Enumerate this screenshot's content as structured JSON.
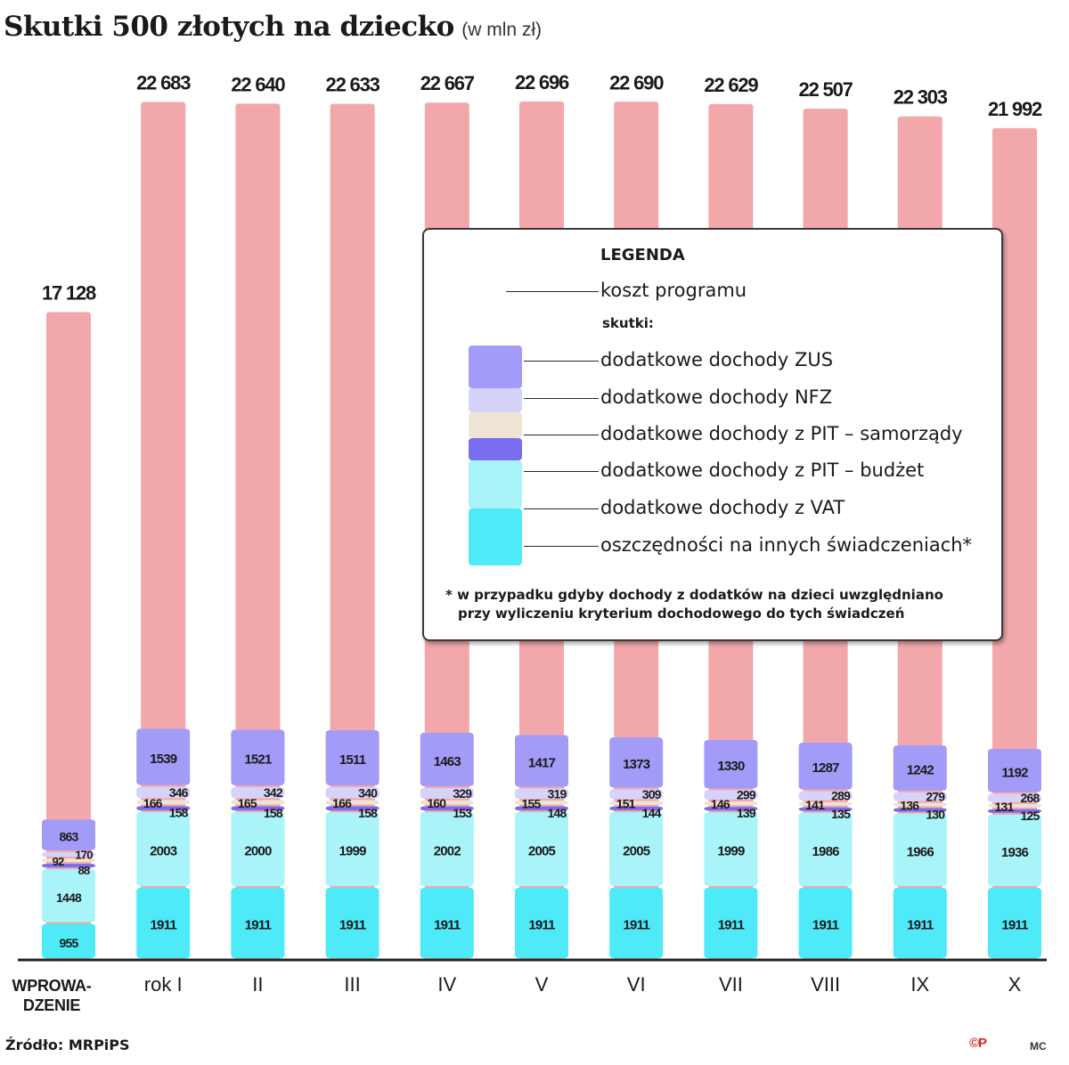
{
  "title": "Skutki 500 złotych na dziecko",
  "unit": "(w mln zł)",
  "source": "Źródło: MRPiPS",
  "logo": "©P",
  "author": "MC",
  "colors": {
    "koszt": "#f2a7aa",
    "zus": "#a29cf8",
    "nfz": "#d6d3fa",
    "pit_sam": "#efe3d3",
    "pit_bud": "#7b6df0",
    "vat": "#a9f4f9",
    "osz": "#4eeaf8"
  },
  "legend": {
    "heading": "LEGENDA",
    "cost_label": "koszt programu",
    "subheading": "skutki:",
    "items": [
      "dodatkowe dochody ZUS",
      "dodatkowe dochody NFZ",
      "dodatkowe dochody z PIT – samorządy",
      "dodatkowe dochody z PIT – budżet",
      "dodatkowe dochody z VAT",
      "oszczędności na innych świadczeniach*"
    ],
    "note_line1": "* w przypadku gdyby dochody z dodatków na dzieci uwzględniano",
    "note_line2": "przy wyliczeniu kryterium dochodowego do tych świadczeń"
  },
  "chart_data": {
    "type": "bar",
    "categories": [
      "WPROWA-\nDZENIE",
      "rok I",
      "II",
      "III",
      "IV",
      "V",
      "VI",
      "VII",
      "VIII",
      "IX",
      "X"
    ],
    "cost_labels": [
      "17 128",
      "22 683",
      "22 640",
      "22 633",
      "22 667",
      "22 696",
      "22 690",
      "22 629",
      "22 507",
      "22 303",
      "21 992"
    ],
    "series": [
      {
        "name": "koszt programu",
        "key": "koszt",
        "values": [
          17128,
          22683,
          22640,
          22633,
          22667,
          22696,
          22690,
          22629,
          22507,
          22303,
          21992
        ]
      },
      {
        "name": "oszczędności na innych świadczeniach*",
        "key": "osz",
        "values": [
          955,
          1911,
          1911,
          1911,
          1911,
          1911,
          1911,
          1911,
          1911,
          1911,
          1911
        ]
      },
      {
        "name": "dodatkowe dochody z VAT",
        "key": "vat",
        "values": [
          1448,
          2003,
          2000,
          1999,
          2002,
          2005,
          2005,
          1999,
          1986,
          1966,
          1936
        ]
      },
      {
        "name": "dodatkowe dochody z PIT – budżet",
        "key": "pit_bud",
        "values": [
          88,
          158,
          158,
          158,
          153,
          148,
          144,
          139,
          135,
          130,
          125
        ]
      },
      {
        "name": "dodatkowe dochody z PIT – samorządy",
        "key": "pit_sam",
        "values": [
          92,
          166,
          165,
          166,
          160,
          155,
          151,
          146,
          141,
          136,
          131
        ]
      },
      {
        "name": "dodatkowe dochody NFZ",
        "key": "nfz",
        "values": [
          170,
          346,
          342,
          340,
          329,
          319,
          309,
          299,
          289,
          279,
          268
        ]
      },
      {
        "name": "dodatkowe dochody ZUS",
        "key": "zus",
        "values": [
          863,
          1539,
          1521,
          1511,
          1463,
          1417,
          1373,
          1330,
          1287,
          1242,
          1192
        ]
      }
    ],
    "ylim": [
      0,
      22696
    ]
  }
}
